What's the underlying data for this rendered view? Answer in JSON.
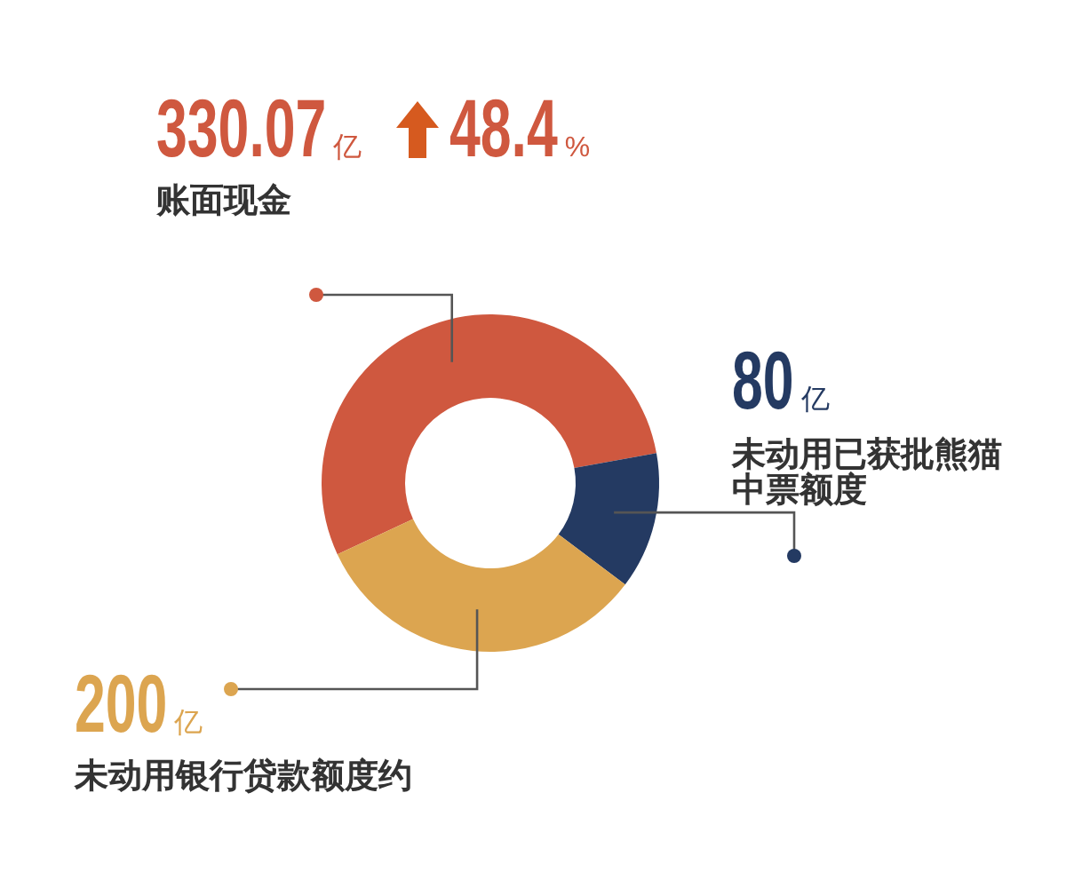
{
  "chart_data": {
    "type": "donut",
    "categories": [
      "账面现金",
      "未动用已获批熊猫中票额度",
      "未动用银行贷款额度约"
    ],
    "values": [
      330.07,
      80,
      200
    ],
    "colors": [
      "#cf583f",
      "#243a62",
      "#dca550"
    ],
    "value_labels": [
      "330.07亿",
      "80亿",
      "200亿"
    ],
    "annotations": [
      "48.4%"
    ]
  }
}
